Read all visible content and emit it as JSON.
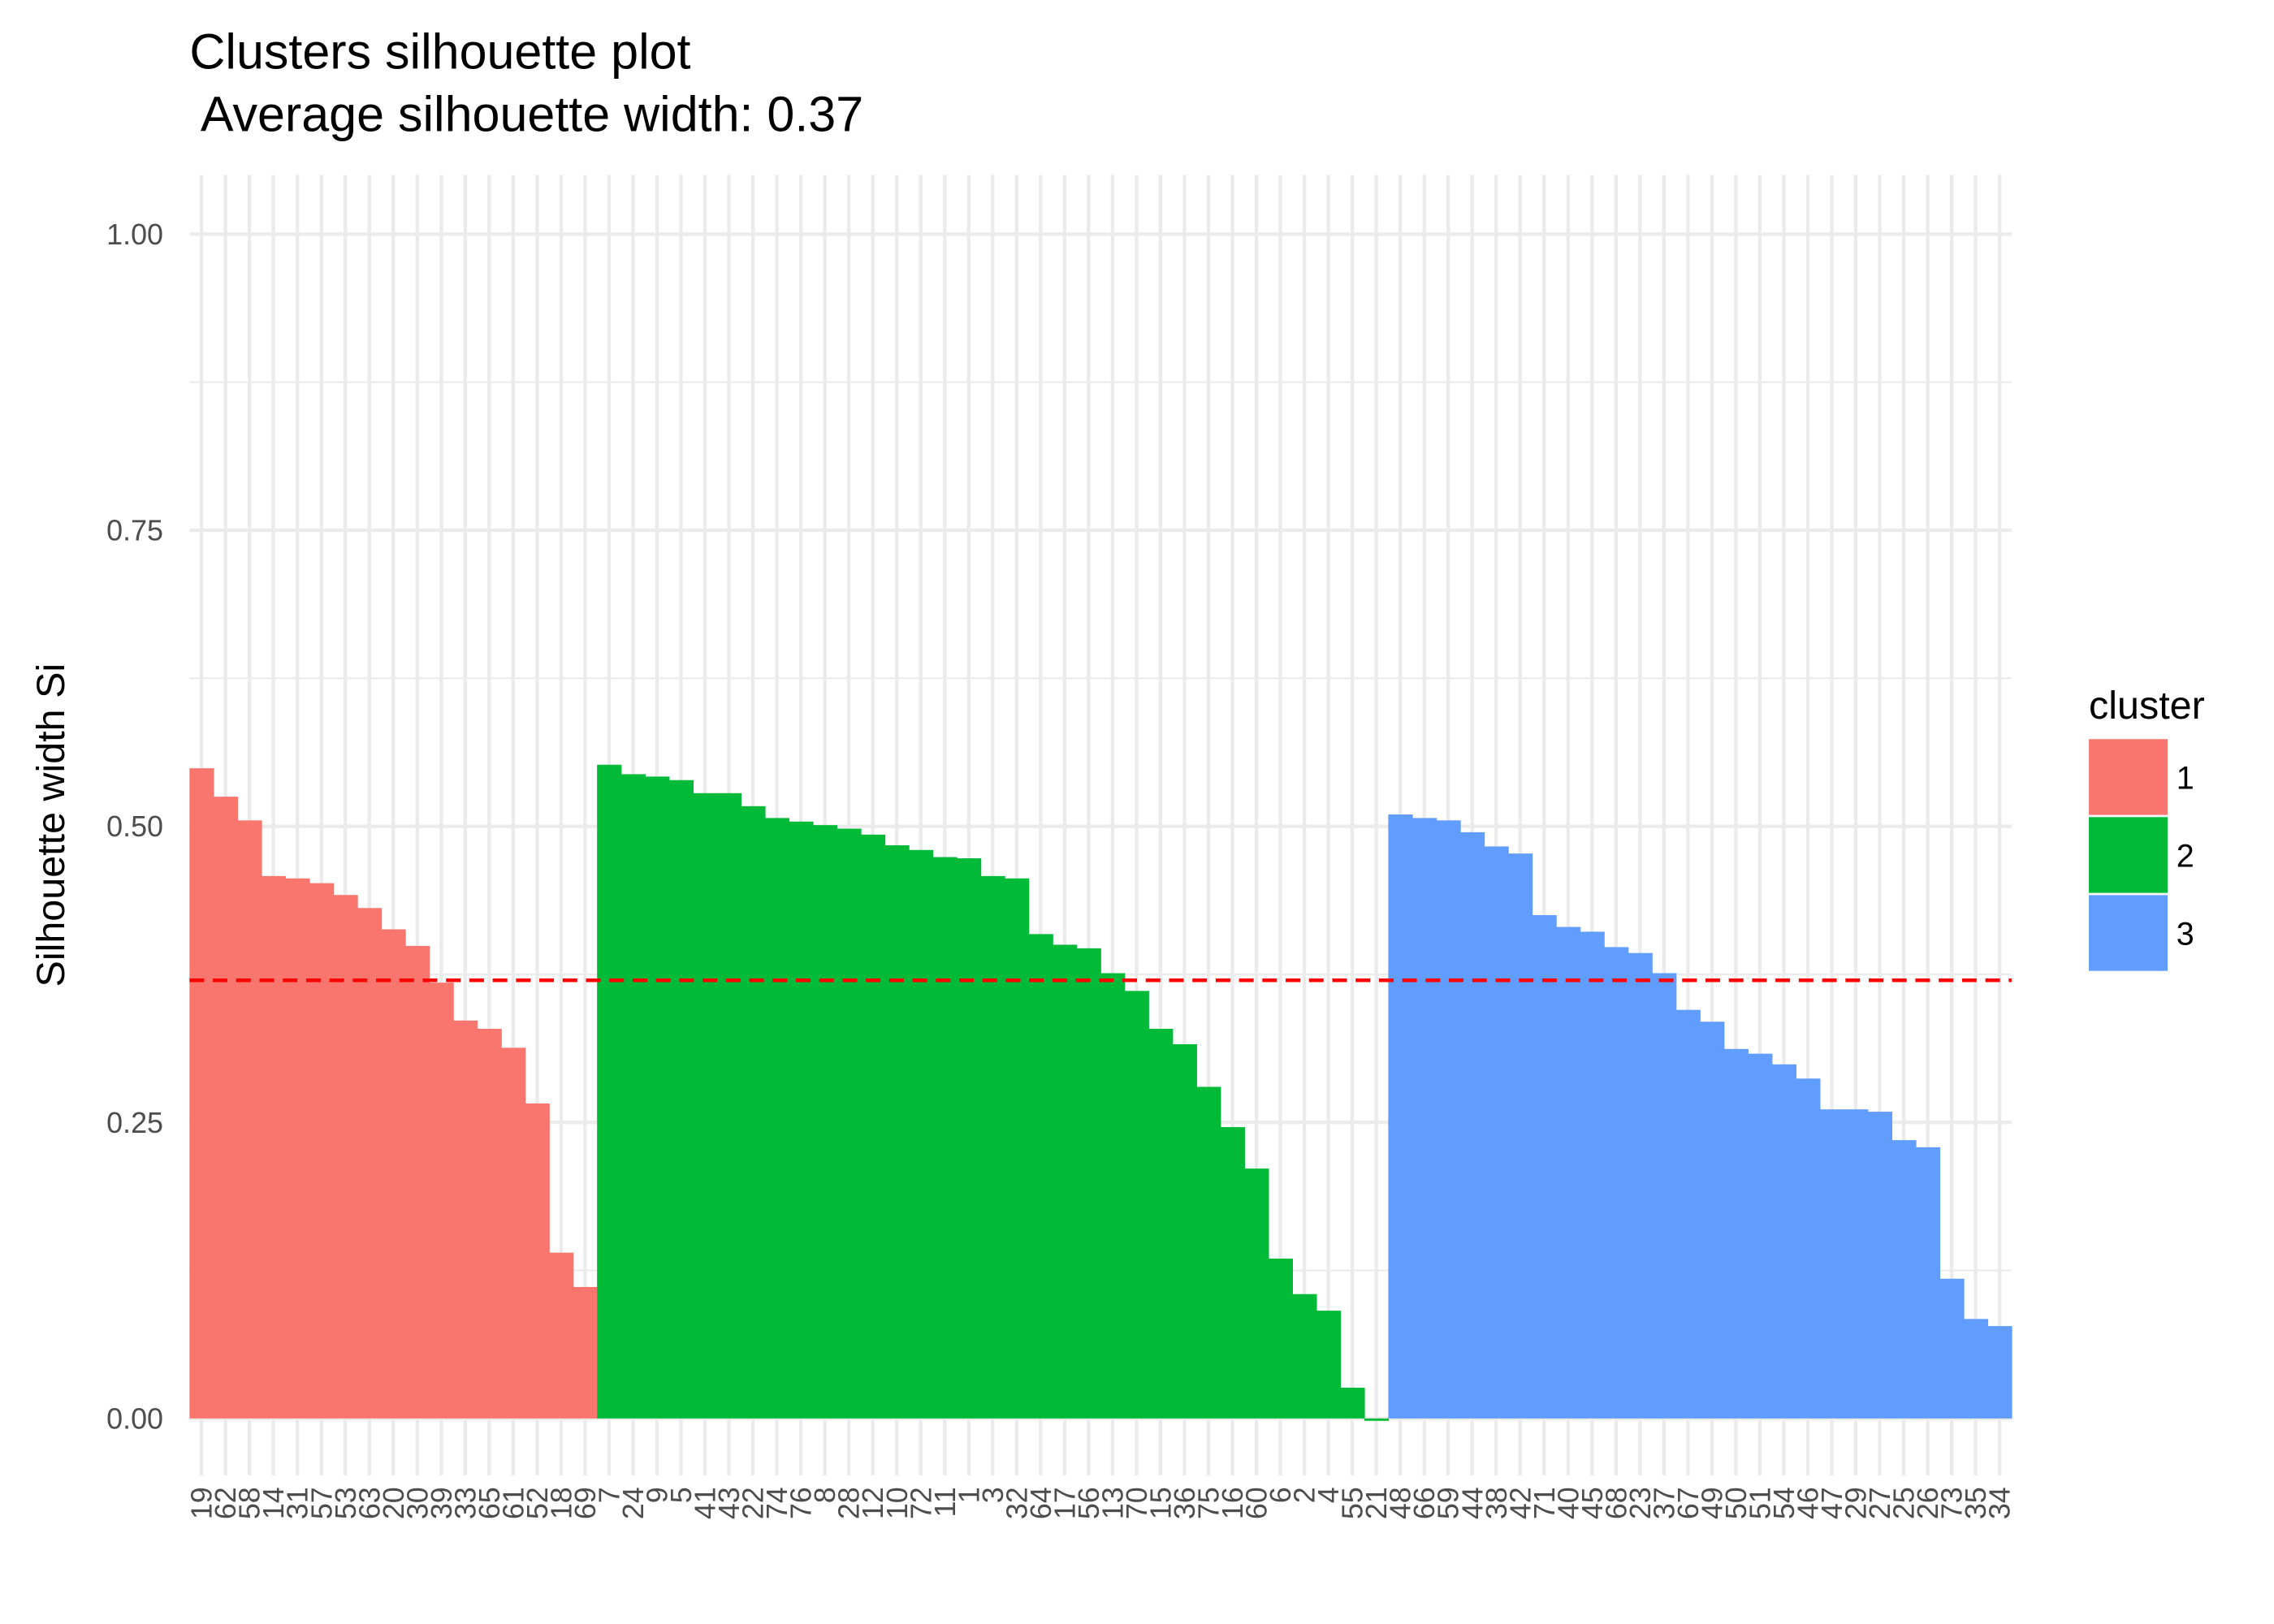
{
  "chart_data": {
    "type": "bar",
    "title": "Clusters silhouette plot",
    "subtitle": " Average silhouette width: 0.37",
    "y_label": "Silhouette width Si",
    "legend_title": "cluster",
    "legend_position": "right",
    "grid": true,
    "categories": [
      "19",
      "62",
      "58",
      "14",
      "31",
      "57",
      "53",
      "63",
      "20",
      "30",
      "39",
      "33",
      "65",
      "61",
      "52",
      "18",
      "69",
      "7",
      "24",
      "9",
      "5",
      "41",
      "43",
      "22",
      "74",
      "76",
      "8",
      "28",
      "12",
      "10",
      "72",
      "11",
      "1",
      "3",
      "32",
      "64",
      "17",
      "56",
      "13",
      "70",
      "15",
      "36",
      "75",
      "16",
      "60",
      "6",
      "2",
      "4",
      "55",
      "21",
      "48",
      "66",
      "59",
      "44",
      "38",
      "42",
      "71",
      "40",
      "45",
      "68",
      "23",
      "37",
      "67",
      "49",
      "50",
      "51",
      "54",
      "46",
      "47",
      "29",
      "27",
      "25",
      "26",
      "73",
      "35",
      "34"
    ],
    "series": [
      {
        "name": "1",
        "color": "#F8766D",
        "values": [
          0.549,
          0.525,
          0.505,
          0.458,
          0.456,
          0.452,
          0.442,
          0.431,
          0.413,
          0.399,
          0.368,
          0.336,
          0.329,
          0.313,
          0.266,
          0.14,
          0.111,
          null,
          null,
          null,
          null,
          null,
          null,
          null,
          null,
          null,
          null,
          null,
          null,
          null,
          null,
          null,
          null,
          null,
          null,
          null,
          null,
          null,
          null,
          null,
          null,
          null,
          null,
          null,
          null,
          null,
          null,
          null,
          null,
          null,
          null,
          null,
          null,
          null,
          null,
          null,
          null,
          null,
          null,
          null,
          null,
          null,
          null,
          null,
          null,
          null,
          null,
          null,
          null,
          null,
          null,
          null,
          null,
          null,
          null,
          null
        ]
      },
      {
        "name": "2",
        "color": "#00BA38",
        "values": [
          null,
          null,
          null,
          null,
          null,
          null,
          null,
          null,
          null,
          null,
          null,
          null,
          null,
          null,
          null,
          null,
          null,
          0.552,
          0.544,
          0.542,
          0.539,
          0.528,
          0.528,
          0.517,
          0.507,
          0.504,
          0.501,
          0.498,
          0.493,
          0.484,
          0.48,
          0.474,
          0.473,
          0.458,
          0.456,
          0.409,
          0.4,
          0.397,
          0.376,
          0.361,
          0.329,
          0.316,
          0.28,
          0.246,
          0.211,
          0.135,
          0.105,
          0.091,
          0.026,
          -0.002,
          null,
          null,
          null,
          null,
          null,
          null,
          null,
          null,
          null,
          null,
          null,
          null,
          null,
          null,
          null,
          null,
          null,
          null,
          null,
          null,
          null,
          null,
          null,
          null,
          null,
          null
        ]
      },
      {
        "name": "3",
        "color": "#619CFF",
        "values": [
          null,
          null,
          null,
          null,
          null,
          null,
          null,
          null,
          null,
          null,
          null,
          null,
          null,
          null,
          null,
          null,
          null,
          null,
          null,
          null,
          null,
          null,
          null,
          null,
          null,
          null,
          null,
          null,
          null,
          null,
          null,
          null,
          null,
          null,
          null,
          null,
          null,
          null,
          null,
          null,
          null,
          null,
          null,
          null,
          null,
          null,
          null,
          null,
          null,
          null,
          0.51,
          0.507,
          0.505,
          0.495,
          0.483,
          0.477,
          0.425,
          0.415,
          0.411,
          0.398,
          0.393,
          0.376,
          0.345,
          0.335,
          0.312,
          0.308,
          0.299,
          0.287,
          0.261,
          0.261,
          0.259,
          0.235,
          0.229,
          0.118,
          0.084,
          0.078
        ]
      }
    ],
    "hline": {
      "value": 0.37,
      "color": "#FF0000"
    },
    "ylim": [
      -0.048,
      1.05
    ],
    "yticks": [
      {
        "value": 0,
        "label": "0.00"
      },
      {
        "value": 0.25,
        "label": "0.25"
      },
      {
        "value": 0.5,
        "label": "0.50"
      },
      {
        "value": 0.75,
        "label": "0.75"
      },
      {
        "value": 1,
        "label": "1.00"
      }
    ]
  }
}
